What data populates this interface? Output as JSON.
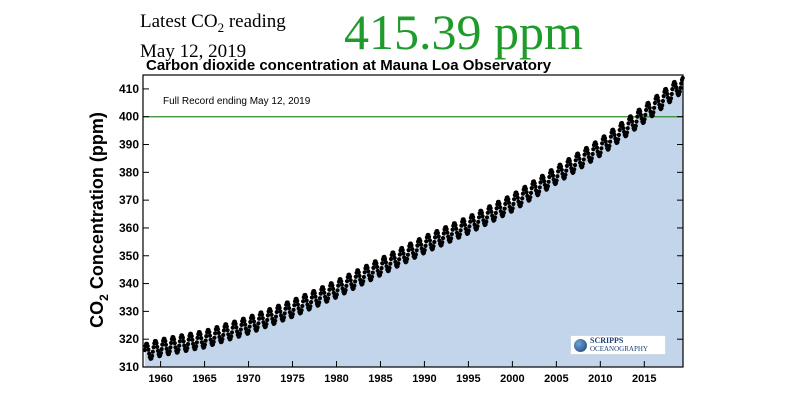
{
  "reading": {
    "label_prefix": "Latest CO",
    "label_sub": "2",
    "label_suffix": " reading",
    "date": "May 12, 2019",
    "value": "415.39 ppm",
    "value_color": "#1e9b2a"
  },
  "chart_data": {
    "type": "scatter",
    "title": "Carbon dioxide concentration at Mauna Loa Observatory",
    "annotation": "Full Record ending May 12, 2019",
    "ylabel": {
      "prefix": "CO",
      "sub": "2",
      "suffix": " Concentration (ppm)"
    },
    "xlabel": "",
    "xlim": [
      1958,
      2019.4
    ],
    "ylim": [
      310,
      415
    ],
    "x_ticks": [
      1960,
      1965,
      1970,
      1975,
      1980,
      1985,
      1990,
      1995,
      2000,
      2005,
      2010,
      2015
    ],
    "y_ticks": [
      310,
      320,
      330,
      340,
      350,
      360,
      370,
      380,
      390,
      400,
      410
    ],
    "reference_line": {
      "y": 400,
      "color": "#2e8b2e"
    },
    "area_color": "#c2d5ea",
    "marker_color": "#000000",
    "series": [
      {
        "annual_x": [
          1958,
          1960,
          1965,
          1970,
          1975,
          1980,
          1985,
          1990,
          1995,
          2000,
          2005,
          2010,
          2015,
          2019
        ],
        "annual_y": [
          315,
          317,
          320,
          325,
          331,
          338,
          346,
          354,
          361,
          369,
          379,
          389,
          401,
          411
        ],
        "seasonal_amplitude": 3
      }
    ]
  },
  "logo": {
    "line1": "SCRIPPS",
    "line2": "OCEANOGRAPHY"
  }
}
